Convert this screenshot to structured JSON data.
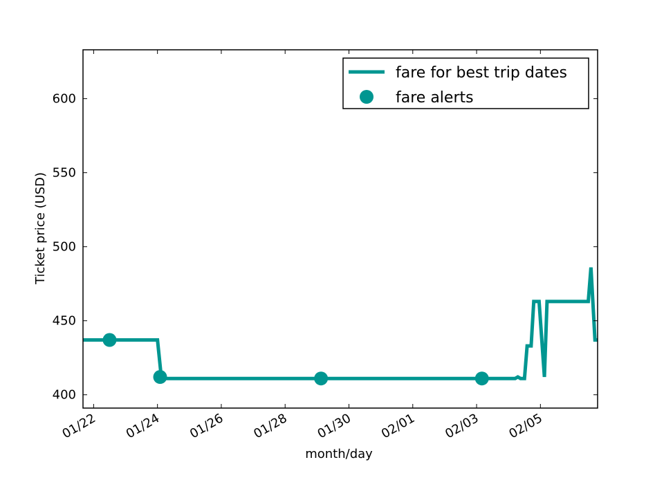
{
  "chart_data": {
    "type": "line",
    "xlabel": "month/day",
    "ylabel": "Ticket price (USD)",
    "xlim": [
      "2014-01-21 16:00",
      "2014-02-06 19:00"
    ],
    "ylim": [
      391,
      633
    ],
    "x_ticks": [
      {
        "date": "2014-01-22",
        "label": "01/22"
      },
      {
        "date": "2014-01-24",
        "label": "01/24"
      },
      {
        "date": "2014-01-26",
        "label": "01/26"
      },
      {
        "date": "2014-01-28",
        "label": "01/28"
      },
      {
        "date": "2014-01-30",
        "label": "01/30"
      },
      {
        "date": "2014-02-01",
        "label": "02/01"
      },
      {
        "date": "2014-02-03",
        "label": "02/03"
      },
      {
        "date": "2014-02-05",
        "label": "02/05"
      }
    ],
    "y_ticks": [
      400,
      450,
      500,
      550,
      600
    ],
    "legend_position": "top-right",
    "series": [
      {
        "name": "fare for best trip dates",
        "kind": "line",
        "color": "#009691",
        "points": [
          {
            "x": "2014-01-21 16:00",
            "y": 437
          },
          {
            "x": "2014-01-24 00:00",
            "y": 437
          },
          {
            "x": "2014-01-24 03:00",
            "y": 411
          },
          {
            "x": "2014-02-04 05:00",
            "y": 411
          },
          {
            "x": "2014-02-04 07:00",
            "y": 412
          },
          {
            "x": "2014-02-04 09:00",
            "y": 411
          },
          {
            "x": "2014-02-04 12:00",
            "y": 411
          },
          {
            "x": "2014-02-04 14:00",
            "y": 433
          },
          {
            "x": "2014-02-04 17:00",
            "y": 433
          },
          {
            "x": "2014-02-04 19:00",
            "y": 463
          },
          {
            "x": "2014-02-04 23:00",
            "y": 463
          },
          {
            "x": "2014-02-05 03:00",
            "y": 412
          },
          {
            "x": "2014-02-05 05:00",
            "y": 463
          },
          {
            "x": "2014-02-06 12:00",
            "y": 463
          },
          {
            "x": "2014-02-06 14:00",
            "y": 486
          },
          {
            "x": "2014-02-06 17:00",
            "y": 437
          },
          {
            "x": "2014-02-06 19:00",
            "y": 437
          }
        ]
      },
      {
        "name": "fare alerts",
        "kind": "markers",
        "color": "#009691",
        "points": [
          {
            "x": "2014-01-22 12:00",
            "y": 437
          },
          {
            "x": "2014-01-24 02:00",
            "y": 412
          },
          {
            "x": "2014-01-29 03:00",
            "y": 411
          },
          {
            "x": "2014-02-03 04:00",
            "y": 411
          }
        ]
      }
    ]
  }
}
